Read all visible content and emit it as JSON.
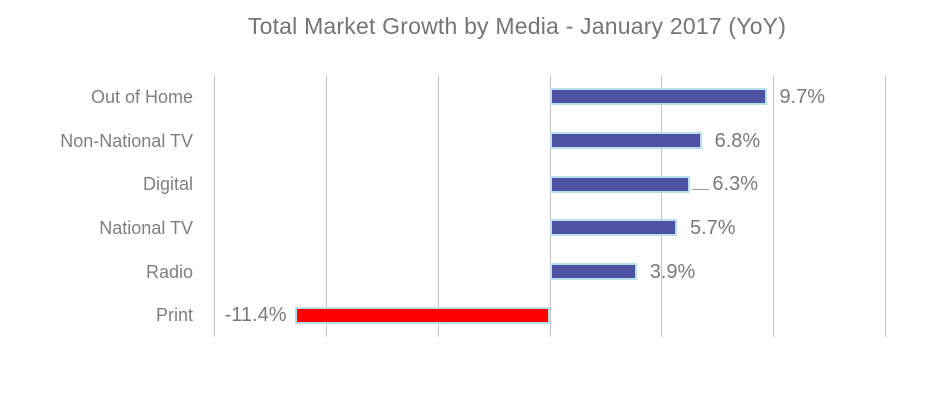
{
  "colors": {
    "background": "#FFFFFF",
    "bar_positive": "#4E52A5",
    "bar_negative": "#FF0000",
    "bar_border": "#B9DFE7",
    "gridline": "#C6C6C6",
    "title_text": "#757575",
    "category_text": "#7F7F7F",
    "value_text": "#7A7A7A",
    "leader_line": "#9A9A9A"
  },
  "chart_data": {
    "type": "bar",
    "orientation": "horizontal",
    "title": "Total Market Growth by Media - January 2017 (YoY)",
    "xlabel": "",
    "ylabel": "",
    "xlim": [
      -15,
      15
    ],
    "gridline_step": 5,
    "grid": true,
    "legend": false,
    "axis_tick_labels_visible": false,
    "categories": [
      "Out of Home",
      "Non-National TV",
      "Digital",
      "National TV",
      "Radio",
      "Print"
    ],
    "values": [
      9.7,
      6.8,
      6.3,
      5.7,
      3.9,
      -11.4
    ],
    "series": [
      {
        "category": "Out of Home",
        "value": 9.7,
        "label": "9.7%",
        "color": "#4E52A5",
        "leader": false
      },
      {
        "category": "Non-National TV",
        "value": 6.8,
        "label": "6.8%",
        "color": "#4E52A5",
        "leader": false
      },
      {
        "category": "Digital",
        "value": 6.3,
        "label": "6.3%",
        "color": "#4E52A5",
        "leader": true
      },
      {
        "category": "National TV",
        "value": 5.7,
        "label": "5.7%",
        "color": "#4E52A5",
        "leader": false
      },
      {
        "category": "Radio",
        "value": 3.9,
        "label": "3.9%",
        "color": "#4E52A5",
        "leader": false
      },
      {
        "category": "Print",
        "value": -11.4,
        "label": "-11.4%",
        "color": "#FF0000",
        "leader": false
      }
    ]
  }
}
